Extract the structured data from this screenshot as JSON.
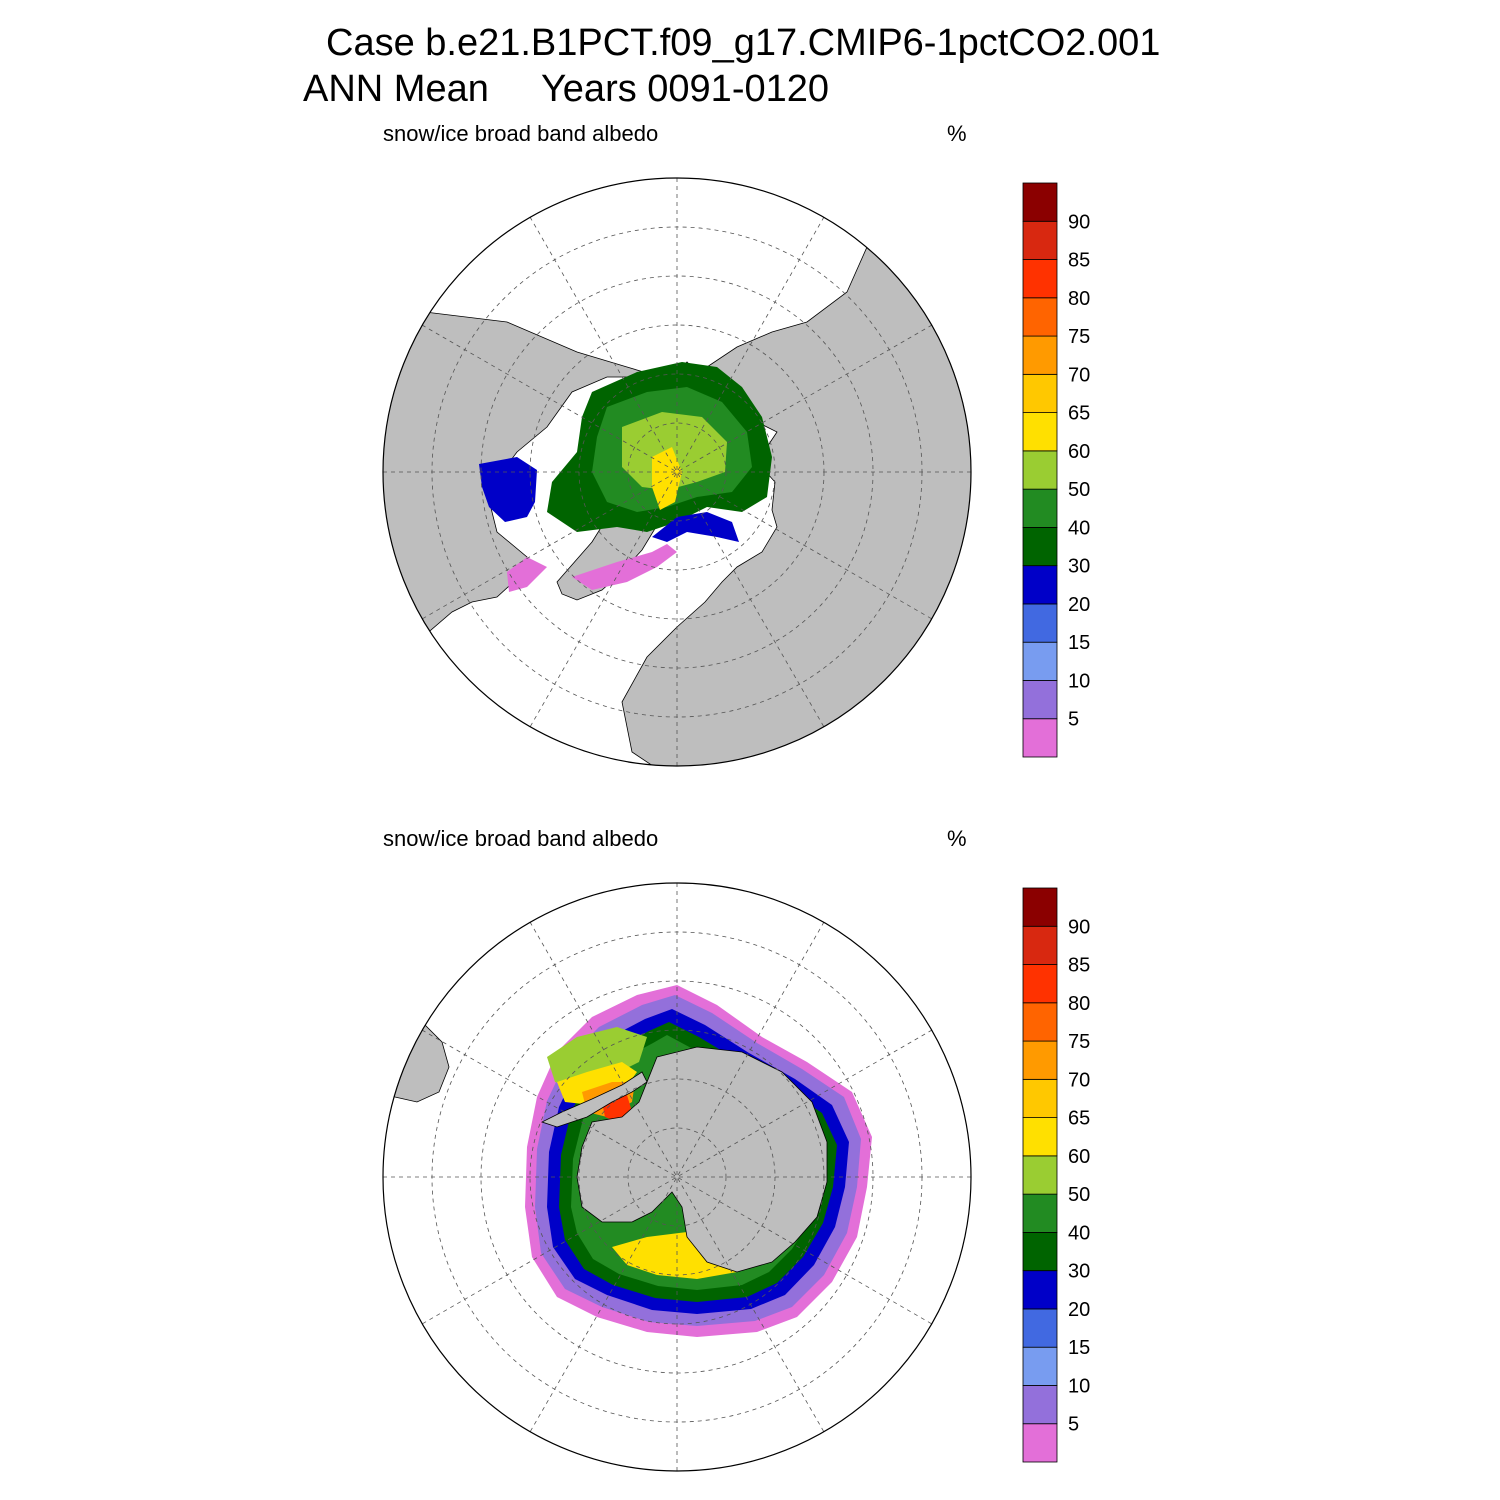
{
  "title": {
    "line1": "Case b.e21.B1PCT.f09_g17.CMIP6-1pctCO2.001",
    "line2": "ANN Mean     Years 0091-0120"
  },
  "colorbar": {
    "levels": [
      "5",
      "10",
      "15",
      "20",
      "30",
      "40",
      "50",
      "60",
      "65",
      "70",
      "75",
      "80",
      "85",
      "90"
    ],
    "colors": [
      "#e36fd8",
      "#9370db",
      "#789cf0",
      "#4169e1",
      "#0000c8",
      "#006400",
      "#228b22",
      "#9acd32",
      "#ffe000",
      "#ffc800",
      "#ff9a00",
      "#ff6400",
      "#ff3200",
      "#d82810",
      "#8b0000"
    ]
  },
  "land_color": "#bebebe",
  "panels": [
    {
      "id": "nh",
      "hemisphere": "north",
      "variable_label": "snow/ice broad band albedo",
      "units_label": "%"
    },
    {
      "id": "sh",
      "hemisphere": "south",
      "variable_label": "snow/ice broad band albedo",
      "units_label": "%"
    }
  ]
}
